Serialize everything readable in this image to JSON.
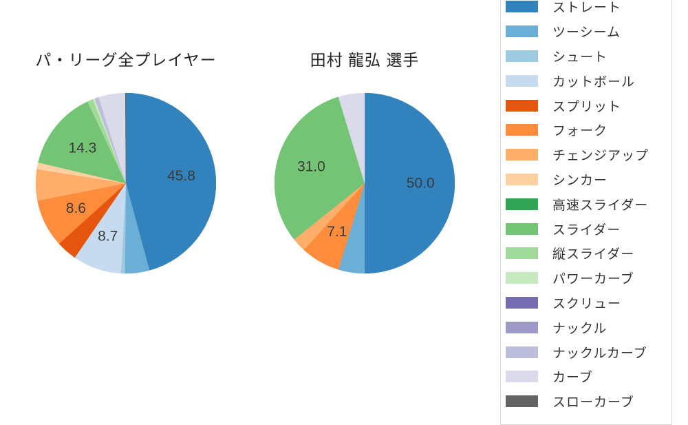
{
  "page": {
    "background": "#ffffff"
  },
  "chart_data": [
    {
      "type": "pie",
      "title": "パ・リーグ全プレイヤー",
      "start_angle_deg": 0,
      "direction": "clockwise",
      "slices": [
        {
          "name": "ストレート",
          "value": 45.8,
          "label": "45.8"
        },
        {
          "name": "ツーシーム",
          "value": 4.4,
          "label": ""
        },
        {
          "name": "シュート",
          "value": 0.7,
          "label": ""
        },
        {
          "name": "カットボール",
          "value": 8.7,
          "label": "8.7"
        },
        {
          "name": "スプリット",
          "value": 3.7,
          "label": ""
        },
        {
          "name": "フォーク",
          "value": 8.6,
          "label": "8.6"
        },
        {
          "name": "チェンジアップ",
          "value": 5.6,
          "label": ""
        },
        {
          "name": "シンカー",
          "value": 1.2,
          "label": ""
        },
        {
          "name": "スライダー",
          "value": 14.3,
          "label": "14.3"
        },
        {
          "name": "縦スライダー",
          "value": 1.0,
          "label": ""
        },
        {
          "name": "パワーカーブ",
          "value": 0.4,
          "label": ""
        },
        {
          "name": "ナックルカーブ",
          "value": 0.7,
          "label": ""
        },
        {
          "name": "カーブ",
          "value": 4.8,
          "label": ""
        },
        {
          "name": "スローカーブ",
          "value": 0.1,
          "label": ""
        }
      ]
    },
    {
      "type": "pie",
      "title": "田村 龍弘 選手",
      "start_angle_deg": 0,
      "direction": "clockwise",
      "slices": [
        {
          "name": "ストレート",
          "value": 50.0,
          "label": "50.0"
        },
        {
          "name": "ツーシーム",
          "value": 4.7,
          "label": ""
        },
        {
          "name": "フォーク",
          "value": 7.1,
          "label": "7.1"
        },
        {
          "name": "チェンジアップ",
          "value": 2.5,
          "label": ""
        },
        {
          "name": "スライダー",
          "value": 31.0,
          "label": "31.0"
        },
        {
          "name": "カーブ",
          "value": 4.7,
          "label": ""
        }
      ]
    }
  ],
  "legend": {
    "items": [
      {
        "label": "ストレート",
        "color": "#3182bd"
      },
      {
        "label": "ツーシーム",
        "color": "#6baed6"
      },
      {
        "label": "シュート",
        "color": "#9ecae1"
      },
      {
        "label": "カットボール",
        "color": "#c6dbef"
      },
      {
        "label": "スプリット",
        "color": "#e6550d"
      },
      {
        "label": "フォーク",
        "color": "#fd8d3c"
      },
      {
        "label": "チェンジアップ",
        "color": "#fdae6b"
      },
      {
        "label": "シンカー",
        "color": "#fdd0a2"
      },
      {
        "label": "高速スライダー",
        "color": "#31a354"
      },
      {
        "label": "スライダー",
        "color": "#74c476"
      },
      {
        "label": "縦スライダー",
        "color": "#a1d99b"
      },
      {
        "label": "パワーカーブ",
        "color": "#c7e9c0"
      },
      {
        "label": "スクリュー",
        "color": "#756bb1"
      },
      {
        "label": "ナックル",
        "color": "#9e9ac8"
      },
      {
        "label": "ナックルカーブ",
        "color": "#bcbddc"
      },
      {
        "label": "カーブ",
        "color": "#dadaeb"
      },
      {
        "label": "スローカーブ",
        "color": "#636363"
      }
    ]
  }
}
